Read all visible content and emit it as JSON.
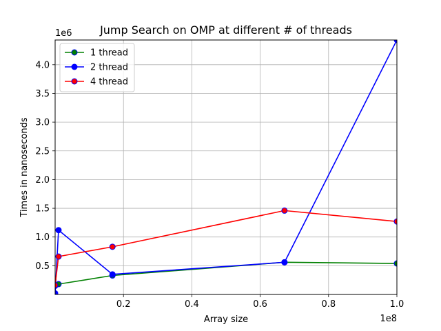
{
  "chart_data": {
    "type": "line",
    "title": "Jump Search on OMP at different # of threads",
    "xlabel": "Array size",
    "ylabel": "Times in nanoseconds",
    "x_offset_label": "1e8",
    "y_offset_label": "1e6",
    "xlim": [
      0,
      100000000
    ],
    "ylim": [
      0,
      4430000
    ],
    "x_scale": 100000000,
    "y_scale": 1000000,
    "x_ticks": [
      20000000,
      40000000,
      60000000,
      80000000,
      100000000
    ],
    "x_tick_labels": [
      "0.2",
      "0.4",
      "0.6",
      "0.8",
      "1.0"
    ],
    "y_ticks": [
      500000,
      1000000,
      1500000,
      2000000,
      2500000,
      3000000,
      3500000,
      4000000
    ],
    "y_tick_labels": [
      "0.5",
      "1.0",
      "1.5",
      "2.0",
      "2.5",
      "3.0",
      "3.5",
      "4.0"
    ],
    "grid": true,
    "legend_position": "top-left",
    "series": [
      {
        "name": "1 thread",
        "color": "#008000",
        "marker_edge": "#0000ff",
        "x": [
          0,
          1000000,
          16777216,
          67108864,
          100000000
        ],
        "y": [
          150000,
          180000,
          330000,
          560000,
          540000
        ]
      },
      {
        "name": "2 thread",
        "color": "#0000ff",
        "marker_edge": "#0000ff",
        "x": [
          0,
          1000000,
          16777216,
          67108864,
          100000000
        ],
        "y": [
          20000,
          1120000,
          350000,
          560000,
          4430000
        ]
      },
      {
        "name": "4 thread",
        "color": "#ff0000",
        "marker_edge": "#0000ff",
        "x": [
          0,
          1000000,
          16777216,
          67108864,
          100000000
        ],
        "y": [
          160000,
          660000,
          830000,
          1460000,
          1270000
        ]
      }
    ]
  }
}
